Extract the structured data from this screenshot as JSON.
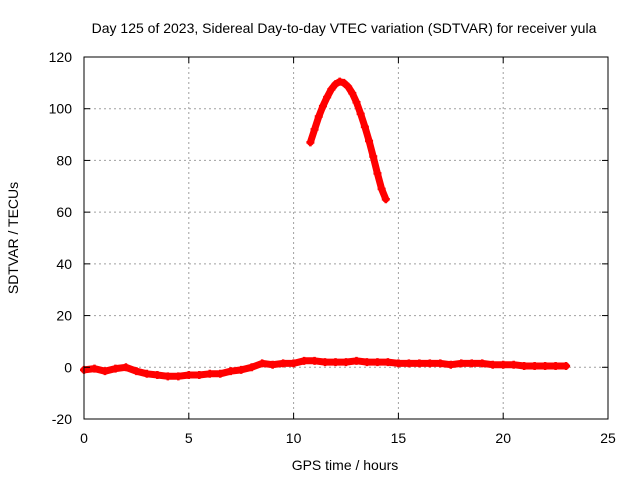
{
  "chart_data": {
    "type": "scatter",
    "title": "Day 125 of 2023, Sidereal Day-to-day VTEC variation (SDTVAR) for receiver yula",
    "xlabel": "GPS time / hours",
    "ylabel": "SDTVAR / TECUs",
    "xlim": [
      0,
      25
    ],
    "ylim": [
      -20,
      120
    ],
    "xticks": [
      0,
      5,
      10,
      15,
      20,
      25
    ],
    "yticks": [
      -20,
      0,
      20,
      40,
      60,
      80,
      100,
      120
    ],
    "grid": true,
    "series": [
      {
        "name": "baseline",
        "color": "#ff0000",
        "x": [
          0.0,
          0.5,
          1.0,
          1.5,
          2.0,
          2.5,
          3.0,
          3.5,
          4.0,
          4.5,
          5.0,
          5.5,
          6.0,
          6.5,
          7.0,
          7.5,
          8.0,
          8.5,
          9.0,
          9.5,
          10.0,
          10.5,
          11.0,
          11.5,
          12.0,
          12.5,
          13.0,
          13.5,
          14.0,
          14.5,
          15.0,
          15.5,
          16.0,
          16.5,
          17.0,
          17.5,
          18.0,
          18.5,
          19.0,
          19.5,
          20.0,
          20.5,
          21.0,
          21.5,
          22.0,
          22.5,
          23.0
        ],
        "y": [
          -1.0,
          -0.5,
          -1.5,
          -0.5,
          0.0,
          -1.5,
          -2.5,
          -3.0,
          -3.5,
          -3.5,
          -3.0,
          -3.0,
          -2.5,
          -2.5,
          -1.5,
          -1.0,
          0.0,
          1.5,
          1.0,
          1.5,
          1.5,
          2.5,
          2.5,
          2.0,
          2.0,
          2.0,
          2.5,
          2.0,
          2.0,
          2.0,
          1.5,
          1.5,
          1.5,
          1.5,
          1.5,
          1.0,
          1.5,
          1.5,
          1.5,
          1.0,
          1.0,
          1.0,
          0.5,
          0.5,
          0.5,
          0.5,
          0.5
        ]
      },
      {
        "name": "arc",
        "color": "#ff0000",
        "x": [
          10.8,
          11.0,
          11.2,
          11.4,
          11.6,
          11.8,
          12.0,
          12.2,
          12.4,
          12.6,
          12.8,
          13.0,
          13.2,
          13.4,
          13.6,
          13.8,
          14.0,
          14.2,
          14.4
        ],
        "y": [
          87,
          92,
          97,
          101,
          104.5,
          107.5,
          109.5,
          110.5,
          110,
          108.5,
          106,
          102.5,
          98,
          93,
          87.5,
          81.5,
          75,
          69,
          65
        ]
      }
    ]
  }
}
